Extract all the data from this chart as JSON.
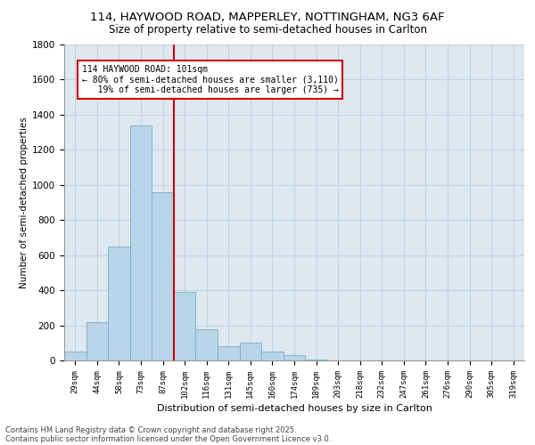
{
  "title_line1": "114, HAYWOOD ROAD, MAPPERLEY, NOTTINGHAM, NG3 6AF",
  "title_line2": "Size of property relative to semi-detached houses in Carlton",
  "xlabel": "Distribution of semi-detached houses by size in Carlton",
  "ylabel": "Number of semi-detached properties",
  "categories": [
    "29sqm",
    "44sqm",
    "58sqm",
    "73sqm",
    "87sqm",
    "102sqm",
    "116sqm",
    "131sqm",
    "145sqm",
    "160sqm",
    "174sqm",
    "189sqm",
    "203sqm",
    "218sqm",
    "232sqm",
    "247sqm",
    "261sqm",
    "276sqm",
    "290sqm",
    "305sqm",
    "319sqm"
  ],
  "values": [
    50,
    220,
    650,
    1340,
    960,
    390,
    180,
    80,
    100,
    50,
    30,
    5,
    0,
    0,
    0,
    0,
    0,
    0,
    0,
    0,
    0
  ],
  "bar_color": "#b8d4e8",
  "bar_edge_color": "#7baec8",
  "vline_x": 4.5,
  "vline_color": "#cc0000",
  "annotation_text": "114 HAYWOOD ROAD: 101sqm\n← 80% of semi-detached houses are smaller (3,110)\n   19% of semi-detached houses are larger (735) →",
  "annotation_box_color": "#ffffff",
  "annotation_box_edge": "#cc0000",
  "ylim": [
    0,
    1800
  ],
  "yticks": [
    0,
    200,
    400,
    600,
    800,
    1000,
    1200,
    1400,
    1600,
    1800
  ],
  "background_color": "#dde8f0",
  "footer_line1": "Contains HM Land Registry data © Crown copyright and database right 2025.",
  "footer_line2": "Contains public sector information licensed under the Open Government Licence v3.0."
}
